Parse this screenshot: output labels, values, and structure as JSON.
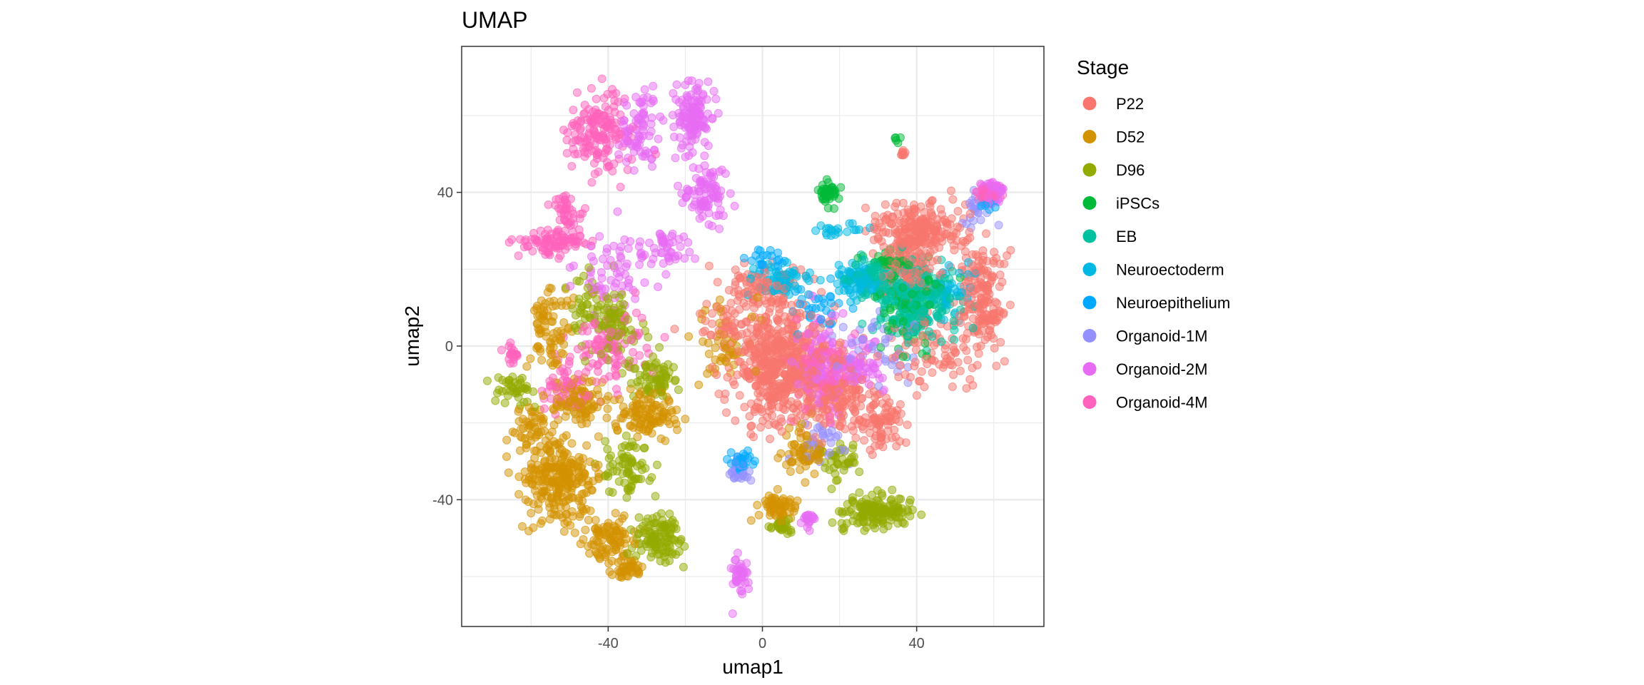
{
  "chart_data": {
    "type": "scatter",
    "title": "UMAP",
    "xlabel": "umap1",
    "ylabel": "umap2",
    "xlim": [
      -78,
      73
    ],
    "ylim": [
      -73,
      78
    ],
    "xticks": [
      -40,
      0,
      40
    ],
    "yticks": [
      -40,
      0,
      40
    ],
    "xtick_labels": [
      "-40",
      "0",
      "40"
    ],
    "ytick_labels": [
      "-40",
      "0",
      "40"
    ],
    "grid": true,
    "legend_title": "Stage",
    "legend_position": "right",
    "point_alpha": 0.5,
    "series": [
      {
        "name": "P22",
        "color": "#F8766D",
        "clusters": [
          {
            "cx": 5,
            "cy": -5,
            "rx": 12,
            "ry": 14,
            "n": 520
          },
          {
            "cx": 40,
            "cy": 30,
            "rx": 10,
            "ry": 6,
            "n": 200
          },
          {
            "cx": 57,
            "cy": 12,
            "rx": 5,
            "ry": 14,
            "n": 170
          },
          {
            "cx": 20,
            "cy": -12,
            "rx": 8,
            "ry": 8,
            "n": 140
          },
          {
            "cx": 30,
            "cy": -20,
            "rx": 6,
            "ry": 6,
            "n": 80
          },
          {
            "cx": 38,
            "cy": 22,
            "rx": 8,
            "ry": 10,
            "n": 120
          },
          {
            "cx": 0,
            "cy": 15,
            "rx": 10,
            "ry": 6,
            "n": 80
          },
          {
            "cx": -10,
            "cy": 5,
            "rx": 8,
            "ry": 8,
            "n": 50
          },
          {
            "cx": 36,
            "cy": 50,
            "rx": 1.5,
            "ry": 1.5,
            "n": 8
          },
          {
            "cx": 45,
            "cy": -2,
            "rx": 10,
            "ry": 8,
            "n": 80
          }
        ]
      },
      {
        "name": "D52",
        "color": "#D39200",
        "clusters": [
          {
            "cx": -53,
            "cy": -35,
            "rx": 9,
            "ry": 9,
            "n": 260
          },
          {
            "cx": -40,
            "cy": -50,
            "rx": 6,
            "ry": 5,
            "n": 90
          },
          {
            "cx": -35,
            "cy": -58,
            "rx": 3,
            "ry": 2,
            "n": 40
          },
          {
            "cx": -30,
            "cy": -18,
            "rx": 8,
            "ry": 5,
            "n": 110
          },
          {
            "cx": -48,
            "cy": -14,
            "rx": 6,
            "ry": 5,
            "n": 90
          },
          {
            "cx": -55,
            "cy": 5,
            "rx": 5,
            "ry": 10,
            "n": 80
          },
          {
            "cx": 5,
            "cy": -42,
            "rx": 4,
            "ry": 3,
            "n": 60
          },
          {
            "cx": 10,
            "cy": -28,
            "rx": 5,
            "ry": 6,
            "n": 60
          },
          {
            "cx": -10,
            "cy": 0,
            "rx": 8,
            "ry": 10,
            "n": 50
          },
          {
            "cx": -60,
            "cy": -20,
            "rx": 5,
            "ry": 6,
            "n": 50
          }
        ]
      },
      {
        "name": "D96",
        "color": "#93AA00",
        "clusters": [
          {
            "cx": -27,
            "cy": -50,
            "rx": 6,
            "ry": 6,
            "n": 110
          },
          {
            "cx": -35,
            "cy": -32,
            "rx": 6,
            "ry": 6,
            "n": 70
          },
          {
            "cx": 30,
            "cy": -43,
            "rx": 8,
            "ry": 4,
            "n": 150
          },
          {
            "cx": -28,
            "cy": -8,
            "rx": 6,
            "ry": 6,
            "n": 70
          },
          {
            "cx": -38,
            "cy": 5,
            "rx": 5,
            "ry": 8,
            "n": 70
          },
          {
            "cx": -65,
            "cy": -12,
            "rx": 5,
            "ry": 4,
            "n": 40
          },
          {
            "cx": 5,
            "cy": -47,
            "rx": 3,
            "ry": 2,
            "n": 30
          },
          {
            "cx": 20,
            "cy": -30,
            "rx": 5,
            "ry": 5,
            "n": 40
          },
          {
            "cx": -45,
            "cy": 10,
            "rx": 6,
            "ry": 8,
            "n": 50
          }
        ]
      },
      {
        "name": "iPSCs",
        "color": "#00BA38",
        "clusters": [
          {
            "cx": 17,
            "cy": 40,
            "rx": 2.5,
            "ry": 2.5,
            "n": 40
          },
          {
            "cx": 33,
            "cy": 22,
            "rx": 5,
            "ry": 2,
            "n": 40
          },
          {
            "cx": 38,
            "cy": 10,
            "rx": 8,
            "ry": 10,
            "n": 80
          },
          {
            "cx": 35,
            "cy": 54,
            "rx": 1,
            "ry": 1,
            "n": 5
          }
        ]
      },
      {
        "name": "EB",
        "color": "#00C19F",
        "clusters": [
          {
            "cx": 40,
            "cy": 12,
            "rx": 10,
            "ry": 9,
            "n": 280
          },
          {
            "cx": 28,
            "cy": 18,
            "rx": 5,
            "ry": 4,
            "n": 60
          }
        ]
      },
      {
        "name": "Neuroectoderm",
        "color": "#00B9E3",
        "clusters": [
          {
            "cx": 25,
            "cy": 17,
            "rx": 6,
            "ry": 4,
            "n": 80
          },
          {
            "cx": 5,
            "cy": 17,
            "rx": 8,
            "ry": 4,
            "n": 70
          },
          {
            "cx": 20,
            "cy": 30,
            "rx": 6,
            "ry": 2,
            "n": 20
          },
          {
            "cx": 48,
            "cy": 15,
            "rx": 6,
            "ry": 6,
            "n": 40
          }
        ]
      },
      {
        "name": "Neuroepithelium",
        "color": "#00A9FF",
        "clusters": [
          {
            "cx": -5,
            "cy": -30,
            "rx": 2.5,
            "ry": 2.5,
            "n": 25
          },
          {
            "cx": 15,
            "cy": 10,
            "rx": 6,
            "ry": 6,
            "n": 30
          },
          {
            "cx": 58,
            "cy": 38,
            "rx": 3,
            "ry": 3,
            "n": 15
          },
          {
            "cx": 0,
            "cy": 22,
            "rx": 6,
            "ry": 3,
            "n": 20
          }
        ]
      },
      {
        "name": "Organoid-1M",
        "color": "#9590FF",
        "clusters": [
          {
            "cx": -6,
            "cy": -32,
            "rx": 2.5,
            "ry": 2.5,
            "n": 30
          },
          {
            "cx": 15,
            "cy": -25,
            "rx": 5,
            "ry": 5,
            "n": 30
          },
          {
            "cx": 55,
            "cy": 35,
            "rx": 4,
            "ry": 4,
            "n": 20
          },
          {
            "cx": 30,
            "cy": 0,
            "rx": 8,
            "ry": 8,
            "n": 40
          }
        ]
      },
      {
        "name": "Organoid-2M",
        "color": "#E76BF3",
        "clusters": [
          {
            "cx": -18,
            "cy": 60,
            "rx": 4,
            "ry": 8,
            "n": 120
          },
          {
            "cx": -32,
            "cy": 55,
            "rx": 5,
            "ry": 10,
            "n": 80
          },
          {
            "cx": -15,
            "cy": 40,
            "rx": 6,
            "ry": 8,
            "n": 90
          },
          {
            "cx": -6,
            "cy": -60,
            "rx": 2,
            "ry": 5,
            "n": 40
          },
          {
            "cx": 15,
            "cy": -5,
            "rx": 6,
            "ry": 12,
            "n": 110
          },
          {
            "cx": 25,
            "cy": -5,
            "rx": 6,
            "ry": 6,
            "n": 70
          },
          {
            "cx": 60,
            "cy": 40,
            "rx": 2.5,
            "ry": 3,
            "n": 50
          },
          {
            "cx": -40,
            "cy": 20,
            "rx": 8,
            "ry": 8,
            "n": 60
          },
          {
            "cx": 12,
            "cy": -45,
            "rx": 1.5,
            "ry": 2,
            "n": 20
          },
          {
            "cx": -25,
            "cy": 25,
            "rx": 6,
            "ry": 5,
            "n": 50
          }
        ]
      },
      {
        "name": "Organoid-4M",
        "color": "#FF62BC",
        "clusters": [
          {
            "cx": -42,
            "cy": 55,
            "rx": 7,
            "ry": 10,
            "n": 160
          },
          {
            "cx": -55,
            "cy": 27,
            "rx": 8,
            "ry": 3,
            "n": 90
          },
          {
            "cx": -50,
            "cy": 35,
            "rx": 4,
            "ry": 4,
            "n": 40
          },
          {
            "cx": -40,
            "cy": 0,
            "rx": 10,
            "ry": 10,
            "n": 100
          },
          {
            "cx": 15,
            "cy": -5,
            "rx": 8,
            "ry": 10,
            "n": 80
          },
          {
            "cx": 58,
            "cy": 40,
            "rx": 3,
            "ry": 3,
            "n": 40
          },
          {
            "cx": -50,
            "cy": -10,
            "rx": 7,
            "ry": 6,
            "n": 60
          },
          {
            "cx": -65,
            "cy": -2,
            "rx": 2,
            "ry": 2,
            "n": 20
          }
        ]
      }
    ]
  }
}
